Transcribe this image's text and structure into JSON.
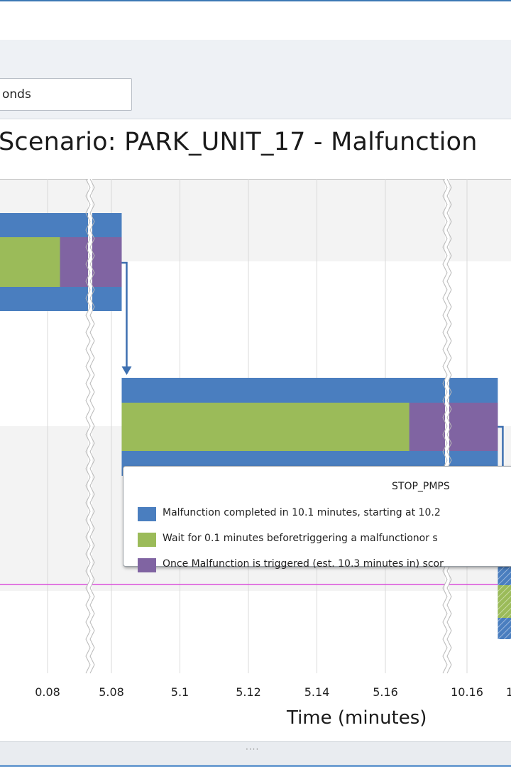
{
  "toolbar": {
    "units_text": "onds"
  },
  "chart_data": {
    "type": "gantt",
    "title": "Scenario: PARK_UNIT_17 - Malfunction",
    "xlabel": "Time (minutes)",
    "x_ticks": [
      "0.08",
      "5.08",
      "5.1",
      "5.12",
      "5.14",
      "5.16",
      "10.16"
    ],
    "x_axis_breaks": [
      "between 0.08 and 5.08",
      "between 5.16 and 10.16"
    ],
    "series": [
      {
        "name": "Malfunction completed",
        "color": "#4a7ebf"
      },
      {
        "name": "Wait before triggering",
        "color": "#9bbb59"
      },
      {
        "name": "Malfunction triggered",
        "color": "#8064a2"
      }
    ],
    "tasks": [
      {
        "row": 1,
        "outer_end": 5.083,
        "wait_end": 0.084,
        "trigger_end": 5.083
      },
      {
        "row": 2,
        "outer_start": 5.083,
        "outer_end": 10.169,
        "wait_start": 5.083,
        "wait_end": 5.167,
        "trigger_end": 10.169
      },
      {
        "row": 3,
        "start": 10.169
      }
    ],
    "grid": true
  },
  "tooltip": {
    "title": "STOP_PMPS",
    "rows": [
      {
        "color": "#4a7ebf",
        "text": "Malfunction completed in 10.1 minutes, starting at 10.2"
      },
      {
        "color": "#9bbb59",
        "text": "Wait for 0.1 minutes beforetriggering a malfunctionor s"
      },
      {
        "color": "#8064a2",
        "text": "Once Malfunction is triggered (est. 10.3 minutes in) scor"
      }
    ]
  },
  "statusbar": {
    "grip": "····"
  }
}
